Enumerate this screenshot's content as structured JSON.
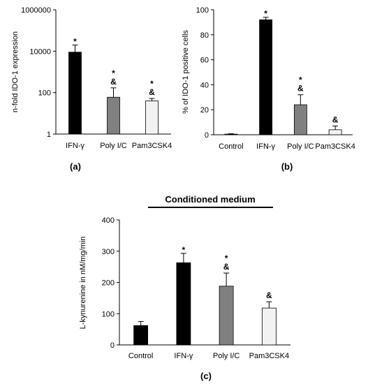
{
  "chart_data": [
    {
      "type": "bar",
      "panel_label": "(a)",
      "ylabel": "n-fold IDO-1 expression",
      "y_scale": "log",
      "ylim": [
        1,
        1000000
      ],
      "yticks": [
        1,
        100,
        10000,
        1000000
      ],
      "ytick_labels": [
        "1",
        "100",
        "10000",
        "1000000"
      ],
      "categories": [
        "IFN-γ",
        "Poly I/C",
        "Pam3CSK4"
      ],
      "values": [
        9000,
        60,
        40
      ],
      "errors": [
        11000,
        110,
        12
      ],
      "bar_colors": [
        "#000000",
        "#808080",
        "#f2f2f2"
      ],
      "annotations": [
        [
          "*"
        ],
        [
          "*",
          "&"
        ],
        [
          "*",
          "&"
        ]
      ]
    },
    {
      "type": "bar",
      "panel_label": "(b)",
      "ylabel": "% of IDO-1 positive cells",
      "ylim": [
        0,
        100
      ],
      "yticks": [
        0,
        20,
        40,
        60,
        80,
        100
      ],
      "ytick_labels": [
        "0",
        "20",
        "40",
        "60",
        "80",
        "100"
      ],
      "categories": [
        "Control",
        "IFN-γ",
        "Poly I/C",
        "Pam3CSK4"
      ],
      "values": [
        0.5,
        92,
        24,
        4
      ],
      "errors": [
        0.3,
        2,
        8,
        3
      ],
      "bar_colors": [
        "#000000",
        "#000000",
        "#808080",
        "#f2f2f2"
      ],
      "annotations": [
        [],
        [
          "*"
        ],
        [
          "*",
          "&"
        ],
        [
          "&"
        ]
      ]
    },
    {
      "type": "bar",
      "panel_label": "(c)",
      "banner": "Conditioned medium",
      "ylabel": "L-kynurenine in nM/mg/min",
      "ylim": [
        0,
        400
      ],
      "yticks": [
        0,
        100,
        200,
        300,
        400
      ],
      "ytick_labels": [
        "0",
        "100",
        "200",
        "300",
        "400"
      ],
      "categories": [
        "Control",
        "IFN-γ",
        "Poly I/C",
        "Pam3CSK4"
      ],
      "values": [
        62,
        263,
        188,
        118
      ],
      "errors": [
        13,
        30,
        42,
        20
      ],
      "bar_colors": [
        "#000000",
        "#000000",
        "#808080",
        "#f2f2f2"
      ],
      "annotations": [
        [],
        [
          "*"
        ],
        [
          "*",
          "&"
        ],
        [
          "&"
        ]
      ]
    }
  ]
}
